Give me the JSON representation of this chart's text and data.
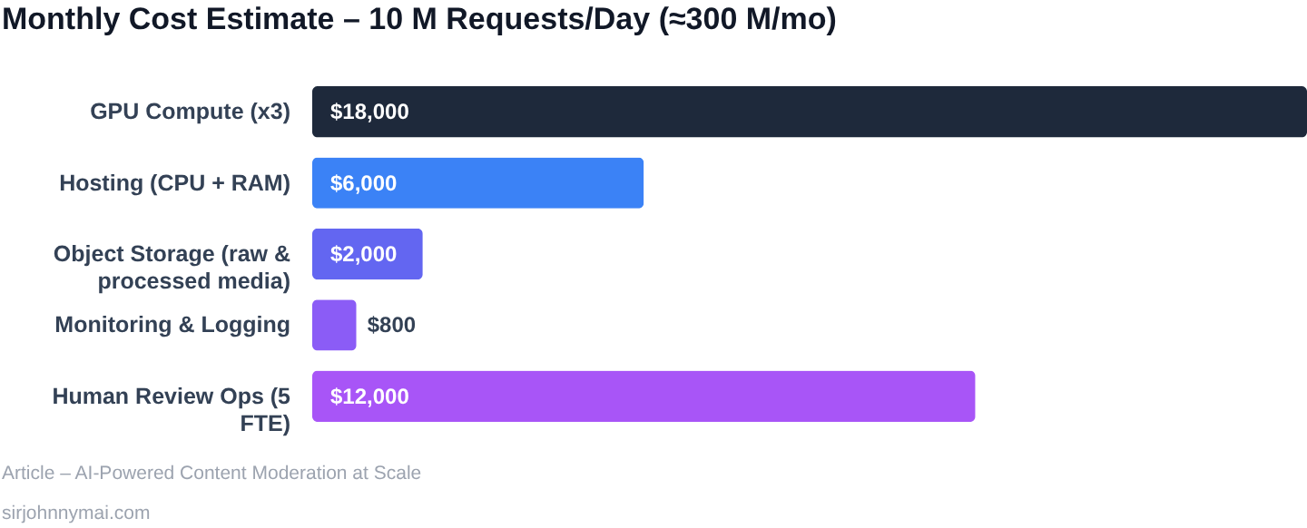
{
  "chart_data": {
    "type": "bar",
    "orientation": "horizontal",
    "title": "Monthly Cost Estimate – 10 M Requests/Day (≈300 M/mo)",
    "categories": [
      "GPU Compute (x3)",
      "Hosting (CPU + RAM)",
      "Object Storage (raw & processed media)",
      "Monitoring & Logging",
      "Human Review Ops (5 FTE)"
    ],
    "values": [
      18000,
      6000,
      2000,
      800,
      12000
    ],
    "colors": [
      "#1e293b",
      "#3b82f6",
      "#6366f1",
      "#8b5cf6",
      "#a855f7"
    ],
    "value_labels": [
      "$18,000",
      "$6,000",
      "$2,000",
      "$800",
      "$12,000"
    ],
    "xlim": [
      0,
      18000
    ],
    "tick_labels": false,
    "grid": false,
    "annotations": [
      "Article – AI-Powered Content Moderation at Scale",
      "sirjohnnymai.com"
    ]
  }
}
